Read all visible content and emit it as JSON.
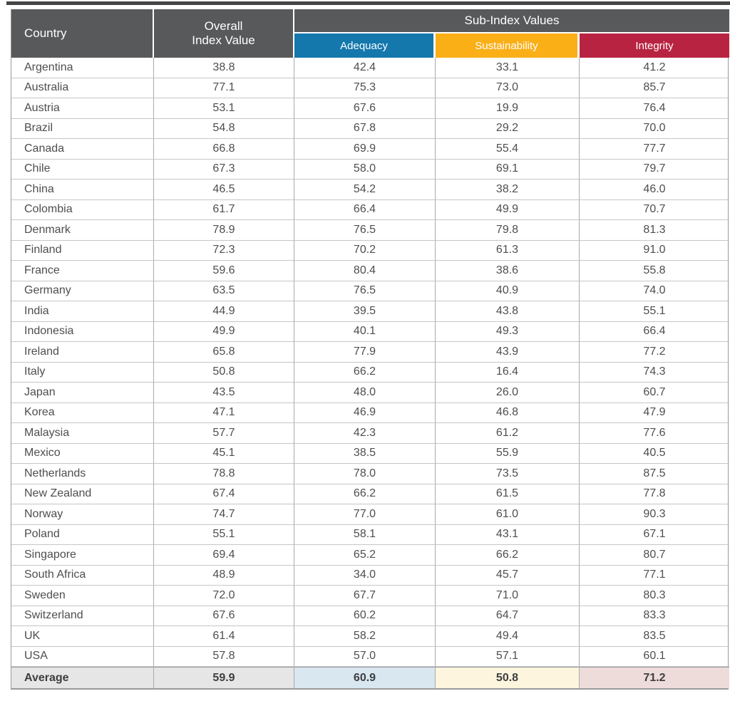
{
  "table": {
    "header": {
      "country_label": "Country",
      "overall_line1": "Overall",
      "overall_line2": "Index Value",
      "subindex_group_label": "Sub-Index Values",
      "subcolumns": [
        {
          "label": "Adequacy",
          "color": "#1478ad",
          "average_bg": "#d9e7f1"
        },
        {
          "label": "Sustainability",
          "color": "#fbaf17",
          "average_bg": "#fdf5dd"
        },
        {
          "label": "Integrity",
          "color": "#b92342",
          "average_bg": "#eedcdb"
        }
      ]
    },
    "rows": [
      {
        "country": "Argentina",
        "overall": "38.8",
        "adequacy": "42.4",
        "sustainability": "33.1",
        "integrity": "41.2"
      },
      {
        "country": "Australia",
        "overall": "77.1",
        "adequacy": "75.3",
        "sustainability": "73.0",
        "integrity": "85.7"
      },
      {
        "country": "Austria",
        "overall": "53.1",
        "adequacy": "67.6",
        "sustainability": "19.9",
        "integrity": "76.4"
      },
      {
        "country": "Brazil",
        "overall": "54.8",
        "adequacy": "67.8",
        "sustainability": "29.2",
        "integrity": "70.0"
      },
      {
        "country": "Canada",
        "overall": "66.8",
        "adequacy": "69.9",
        "sustainability": "55.4",
        "integrity": "77.7"
      },
      {
        "country": "Chile",
        "overall": "67.3",
        "adequacy": "58.0",
        "sustainability": "69.1",
        "integrity": "79.7"
      },
      {
        "country": "China",
        "overall": "46.5",
        "adequacy": "54.2",
        "sustainability": "38.2",
        "integrity": "46.0"
      },
      {
        "country": "Colombia",
        "overall": "61.7",
        "adequacy": "66.4",
        "sustainability": "49.9",
        "integrity": "70.7"
      },
      {
        "country": "Denmark",
        "overall": "78.9",
        "adequacy": "76.5",
        "sustainability": "79.8",
        "integrity": "81.3"
      },
      {
        "country": "Finland",
        "overall": "72.3",
        "adequacy": "70.2",
        "sustainability": "61.3",
        "integrity": "91.0"
      },
      {
        "country": "France",
        "overall": "59.6",
        "adequacy": "80.4",
        "sustainability": "38.6",
        "integrity": "55.8"
      },
      {
        "country": "Germany",
        "overall": "63.5",
        "adequacy": "76.5",
        "sustainability": "40.9",
        "integrity": "74.0"
      },
      {
        "country": "India",
        "overall": "44.9",
        "adequacy": "39.5",
        "sustainability": "43.8",
        "integrity": "55.1"
      },
      {
        "country": "Indonesia",
        "overall": "49.9",
        "adequacy": "40.1",
        "sustainability": "49.3",
        "integrity": "66.4"
      },
      {
        "country": "Ireland",
        "overall": "65.8",
        "adequacy": "77.9",
        "sustainability": "43.9",
        "integrity": "77.2"
      },
      {
        "country": "Italy",
        "overall": "50.8",
        "adequacy": "66.2",
        "sustainability": "16.4",
        "integrity": "74.3"
      },
      {
        "country": "Japan",
        "overall": "43.5",
        "adequacy": "48.0",
        "sustainability": "26.0",
        "integrity": "60.7"
      },
      {
        "country": "Korea",
        "overall": "47.1",
        "adequacy": "46.9",
        "sustainability": "46.8",
        "integrity": "47.9"
      },
      {
        "country": "Malaysia",
        "overall": "57.7",
        "adequacy": "42.3",
        "sustainability": "61.2",
        "integrity": "77.6"
      },
      {
        "country": "Mexico",
        "overall": "45.1",
        "adequacy": "38.5",
        "sustainability": "55.9",
        "integrity": "40.5"
      },
      {
        "country": "Netherlands",
        "overall": "78.8",
        "adequacy": "78.0",
        "sustainability": "73.5",
        "integrity": "87.5"
      },
      {
        "country": "New Zealand",
        "overall": "67.4",
        "adequacy": "66.2",
        "sustainability": "61.5",
        "integrity": "77.8"
      },
      {
        "country": "Norway",
        "overall": "74.7",
        "adequacy": "77.0",
        "sustainability": "61.0",
        "integrity": "90.3"
      },
      {
        "country": "Poland",
        "overall": "55.1",
        "adequacy": "58.1",
        "sustainability": "43.1",
        "integrity": "67.1"
      },
      {
        "country": "Singapore",
        "overall": "69.4",
        "adequacy": "65.2",
        "sustainability": "66.2",
        "integrity": "80.7"
      },
      {
        "country": "South Africa",
        "overall": "48.9",
        "adequacy": "34.0",
        "sustainability": "45.7",
        "integrity": "77.1"
      },
      {
        "country": "Sweden",
        "overall": "72.0",
        "adequacy": "67.7",
        "sustainability": "71.0",
        "integrity": "80.3"
      },
      {
        "country": "Switzerland",
        "overall": "67.6",
        "adequacy": "60.2",
        "sustainability": "64.7",
        "integrity": "83.3"
      },
      {
        "country": "UK",
        "overall": "61.4",
        "adequacy": "58.2",
        "sustainability": "49.4",
        "integrity": "83.5"
      },
      {
        "country": "USA",
        "overall": "57.8",
        "adequacy": "57.0",
        "sustainability": "57.1",
        "integrity": "60.1"
      }
    ],
    "average": {
      "label": "Average",
      "overall": "59.9",
      "adequacy": "60.9",
      "sustainability": "50.8",
      "integrity": "71.2",
      "label_bg": "#e6e6e6",
      "overall_bg": "#e6e6e6"
    }
  },
  "colors": {
    "header_bg": "#58595b",
    "header_text": "#ffffff",
    "body_text": "#4d4e50",
    "row_border": "#c6c6c8",
    "column_border": "#aaaaac",
    "outer_border": "#9a9a9c",
    "top_rule": "#454547"
  },
  "chart_data": {
    "type": "table",
    "title": "",
    "columns": [
      "Country",
      "Overall Index Value",
      "Adequacy",
      "Sustainability",
      "Integrity"
    ],
    "column_group": {
      "label": "Sub-Index Values",
      "spans": [
        "Adequacy",
        "Sustainability",
        "Integrity"
      ]
    },
    "rows": [
      [
        "Argentina",
        38.8,
        42.4,
        33.1,
        41.2
      ],
      [
        "Australia",
        77.1,
        75.3,
        73.0,
        85.7
      ],
      [
        "Austria",
        53.1,
        67.6,
        19.9,
        76.4
      ],
      [
        "Brazil",
        54.8,
        67.8,
        29.2,
        70.0
      ],
      [
        "Canada",
        66.8,
        69.9,
        55.4,
        77.7
      ],
      [
        "Chile",
        67.3,
        58.0,
        69.1,
        79.7
      ],
      [
        "China",
        46.5,
        54.2,
        38.2,
        46.0
      ],
      [
        "Colombia",
        61.7,
        66.4,
        49.9,
        70.7
      ],
      [
        "Denmark",
        78.9,
        76.5,
        79.8,
        81.3
      ],
      [
        "Finland",
        72.3,
        70.2,
        61.3,
        91.0
      ],
      [
        "France",
        59.6,
        80.4,
        38.6,
        55.8
      ],
      [
        "Germany",
        63.5,
        76.5,
        40.9,
        74.0
      ],
      [
        "India",
        44.9,
        39.5,
        43.8,
        55.1
      ],
      [
        "Indonesia",
        49.9,
        40.1,
        49.3,
        66.4
      ],
      [
        "Ireland",
        65.8,
        77.9,
        43.9,
        77.2
      ],
      [
        "Italy",
        50.8,
        66.2,
        16.4,
        74.3
      ],
      [
        "Japan",
        43.5,
        48.0,
        26.0,
        60.7
      ],
      [
        "Korea",
        47.1,
        46.9,
        46.8,
        47.9
      ],
      [
        "Malaysia",
        57.7,
        42.3,
        61.2,
        77.6
      ],
      [
        "Mexico",
        45.1,
        38.5,
        55.9,
        40.5
      ],
      [
        "Netherlands",
        78.8,
        78.0,
        73.5,
        87.5
      ],
      [
        "New Zealand",
        67.4,
        66.2,
        61.5,
        77.8
      ],
      [
        "Norway",
        74.7,
        77.0,
        61.0,
        90.3
      ],
      [
        "Poland",
        55.1,
        58.1,
        43.1,
        67.1
      ],
      [
        "Singapore",
        69.4,
        65.2,
        66.2,
        80.7
      ],
      [
        "South Africa",
        48.9,
        34.0,
        45.7,
        77.1
      ],
      [
        "Sweden",
        72.0,
        67.7,
        71.0,
        80.3
      ],
      [
        "Switzerland",
        67.6,
        60.2,
        64.7,
        83.3
      ],
      [
        "UK",
        61.4,
        58.2,
        49.4,
        83.5
      ],
      [
        "USA",
        57.8,
        57.0,
        57.1,
        60.1
      ]
    ],
    "average_row": [
      "Average",
      59.9,
      60.9,
      50.8,
      71.2
    ]
  }
}
